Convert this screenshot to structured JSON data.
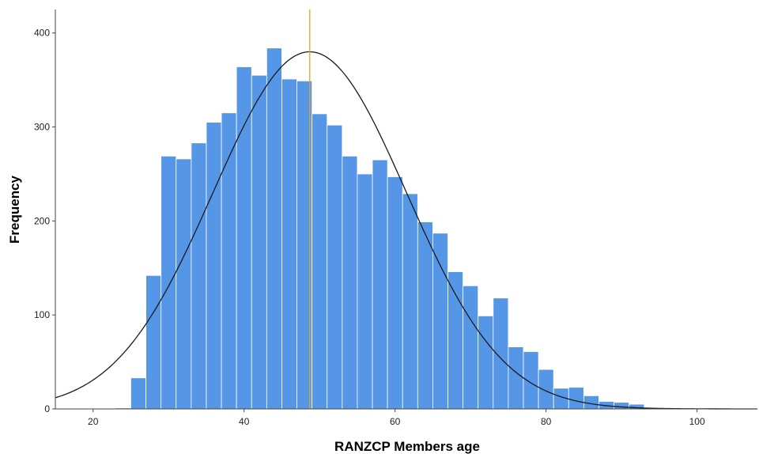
{
  "chart_data": {
    "type": "bar",
    "title": "",
    "xlabel": "RANZCP Members age",
    "ylabel": "Frequency",
    "xlim": [
      15,
      108
    ],
    "ylim": [
      0,
      425
    ],
    "x_ticks": [
      20,
      40,
      60,
      80,
      100
    ],
    "y_ticks": [
      0,
      100,
      200,
      300,
      400
    ],
    "grid": false,
    "bin_width": 2,
    "bins": [
      {
        "start": 21,
        "end": 23,
        "value": 0
      },
      {
        "start": 23,
        "end": 25,
        "value": 1
      },
      {
        "start": 25,
        "end": 27,
        "value": 33
      },
      {
        "start": 27,
        "end": 29,
        "value": 142
      },
      {
        "start": 29,
        "end": 31,
        "value": 269
      },
      {
        "start": 31,
        "end": 33,
        "value": 266
      },
      {
        "start": 33,
        "end": 35,
        "value": 283
      },
      {
        "start": 35,
        "end": 37,
        "value": 305
      },
      {
        "start": 37,
        "end": 39,
        "value": 315
      },
      {
        "start": 39,
        "end": 41,
        "value": 364
      },
      {
        "start": 41,
        "end": 43,
        "value": 355
      },
      {
        "start": 43,
        "end": 45,
        "value": 384
      },
      {
        "start": 45,
        "end": 47,
        "value": 351
      },
      {
        "start": 47,
        "end": 49,
        "value": 349
      },
      {
        "start": 49,
        "end": 51,
        "value": 314
      },
      {
        "start": 51,
        "end": 53,
        "value": 302
      },
      {
        "start": 53,
        "end": 55,
        "value": 269
      },
      {
        "start": 55,
        "end": 57,
        "value": 250
      },
      {
        "start": 57,
        "end": 59,
        "value": 265
      },
      {
        "start": 59,
        "end": 61,
        "value": 247
      },
      {
        "start": 61,
        "end": 63,
        "value": 229
      },
      {
        "start": 63,
        "end": 65,
        "value": 199
      },
      {
        "start": 65,
        "end": 67,
        "value": 187
      },
      {
        "start": 67,
        "end": 69,
        "value": 146
      },
      {
        "start": 69,
        "end": 71,
        "value": 131
      },
      {
        "start": 71,
        "end": 73,
        "value": 99
      },
      {
        "start": 73,
        "end": 75,
        "value": 118
      },
      {
        "start": 75,
        "end": 77,
        "value": 66
      },
      {
        "start": 77,
        "end": 79,
        "value": 61
      },
      {
        "start": 79,
        "end": 81,
        "value": 42
      },
      {
        "start": 81,
        "end": 83,
        "value": 22
      },
      {
        "start": 83,
        "end": 85,
        "value": 23
      },
      {
        "start": 85,
        "end": 87,
        "value": 14
      },
      {
        "start": 87,
        "end": 89,
        "value": 8
      },
      {
        "start": 89,
        "end": 91,
        "value": 7
      },
      {
        "start": 91,
        "end": 93,
        "value": 5
      },
      {
        "start": 93,
        "end": 95,
        "value": 0
      },
      {
        "start": 101,
        "end": 103,
        "value": 1
      }
    ],
    "normal_curve": {
      "mean": 48.7,
      "sd": 12.8,
      "peak": 380
    },
    "mean_line": 48.7,
    "colors": {
      "bar_fill": "#5596e6",
      "bar_edge": "#ffffff",
      "curve": "#1a1a1a",
      "mean_line": "#e8a030",
      "axis": "#444444"
    }
  }
}
